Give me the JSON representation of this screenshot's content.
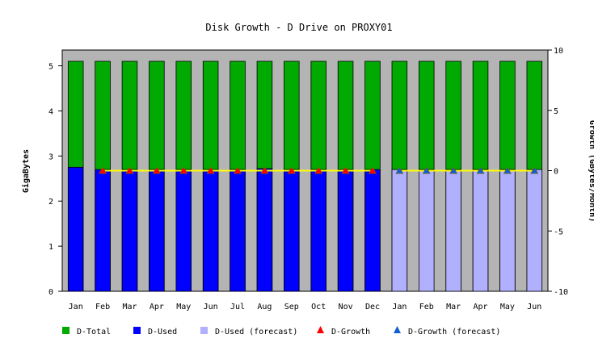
{
  "chart_data": {
    "type": "bar",
    "title": "Disk Growth - D Drive on PROXY01",
    "ylabel": "GigaBytes",
    "y2label": "Growth (GBytes/Month)",
    "xlabel": "",
    "ylim": [
      0,
      5.35
    ],
    "y2lim": [
      -10,
      10
    ],
    "yticks": [
      "0",
      "1",
      "2",
      "3",
      "4",
      "5"
    ],
    "y2ticks": [
      "-10",
      "-5",
      "0",
      "5",
      "10"
    ],
    "categories": [
      "Jan",
      "Feb",
      "Mar",
      "Apr",
      "May",
      "Jun",
      "Jul",
      "Aug",
      "Sep",
      "Oct",
      "Nov",
      "Dec",
      "Jan",
      "Feb",
      "Mar",
      "Apr",
      "May",
      "Jun"
    ],
    "series": [
      {
        "name": "D-Total",
        "kind": "bar",
        "color": "#00aa00",
        "values": [
          5.1,
          5.1,
          5.1,
          5.1,
          5.1,
          5.1,
          5.1,
          5.1,
          5.1,
          5.1,
          5.1,
          5.1,
          5.1,
          5.1,
          5.1,
          5.1,
          5.1,
          5.1
        ]
      },
      {
        "name": "D-Used",
        "kind": "bar",
        "color": "#0000ff",
        "values": [
          2.75,
          2.7,
          2.7,
          2.7,
          2.7,
          2.7,
          2.7,
          2.72,
          2.7,
          2.7,
          2.7,
          2.7,
          null,
          null,
          null,
          null,
          null,
          null
        ]
      },
      {
        "name": "D-Used (forecast)",
        "kind": "bar",
        "color": "#b0b0ff",
        "values": [
          null,
          null,
          null,
          null,
          null,
          null,
          null,
          null,
          null,
          null,
          null,
          null,
          2.7,
          2.7,
          2.7,
          2.7,
          2.7,
          2.7
        ]
      },
      {
        "name": "D-Growth",
        "kind": "line",
        "axis": "right",
        "color": "#ff0000",
        "values": [
          null,
          0,
          0,
          0,
          0,
          0,
          0,
          0,
          0,
          0,
          0,
          0,
          null,
          null,
          null,
          null,
          null,
          null
        ]
      },
      {
        "name": "D-Growth (forecast)",
        "kind": "line",
        "axis": "right",
        "color": "#1060d0",
        "values": [
          null,
          null,
          null,
          null,
          null,
          null,
          null,
          null,
          null,
          null,
          null,
          null,
          0,
          0,
          0,
          0,
          0,
          0
        ]
      }
    ],
    "plot_background": "#b4b4b4",
    "line_color": "#ffff00",
    "grid": false,
    "legend_position": "bottom",
    "legend": [
      {
        "label": "D-Total",
        "marker": "square",
        "color": "#00aa00"
      },
      {
        "label": "D-Used",
        "marker": "square",
        "color": "#0000ff"
      },
      {
        "label": "D-Used (forecast)",
        "marker": "square",
        "color": "#b0b0ff"
      },
      {
        "label": "D-Growth",
        "marker": "triangle",
        "color": "#ff0000"
      },
      {
        "label": "D-Growth (forecast)",
        "marker": "triangle",
        "color": "#1060d0"
      }
    ]
  }
}
